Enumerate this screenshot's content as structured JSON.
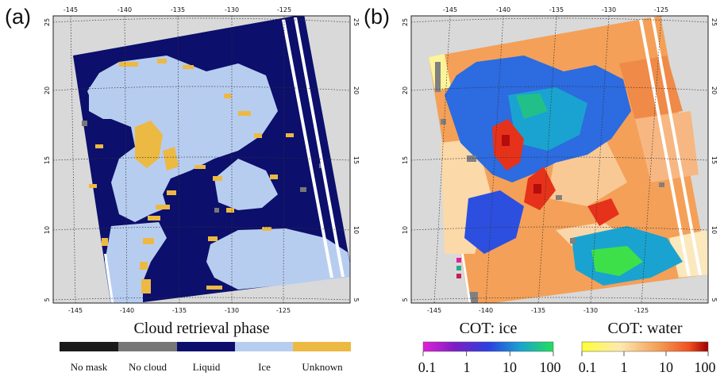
{
  "panels": {
    "a": {
      "label": "(a)",
      "lon_ticks": [
        "-145",
        "-140",
        "-135",
        "-130",
        "-125"
      ],
      "lat_ticks": [
        "25",
        "20",
        "15",
        "10",
        "5"
      ],
      "title": "Cloud retrieval phase",
      "legend": [
        {
          "label": "No mask",
          "color": "#1a1a1a"
        },
        {
          "label": "No cloud",
          "color": "#777777"
        },
        {
          "label": "Liquid",
          "color": "#0c0f6b"
        },
        {
          "label": "Ice",
          "color": "#b7cdf0"
        },
        {
          "label": "Unknown",
          "color": "#ecb943"
        }
      ]
    },
    "b": {
      "label": "(b)",
      "lon_ticks": [
        "-145",
        "-140",
        "-135",
        "-130",
        "-125"
      ],
      "lat_ticks": [
        "25",
        "20",
        "15",
        "10",
        "5"
      ],
      "colorbars": [
        {
          "title": "COT: ice",
          "ticks": [
            "0.1",
            "1",
            "10",
            "100"
          ]
        },
        {
          "title": "COT: water",
          "ticks": [
            "0.1",
            "1",
            "10",
            "100"
          ]
        }
      ]
    }
  },
  "colors": {
    "background": "#d9d9d9",
    "liquid": "#0c0f6b",
    "ice": "#b7cdf0",
    "unknown": "#ecb943",
    "no_cloud": "#777777"
  }
}
